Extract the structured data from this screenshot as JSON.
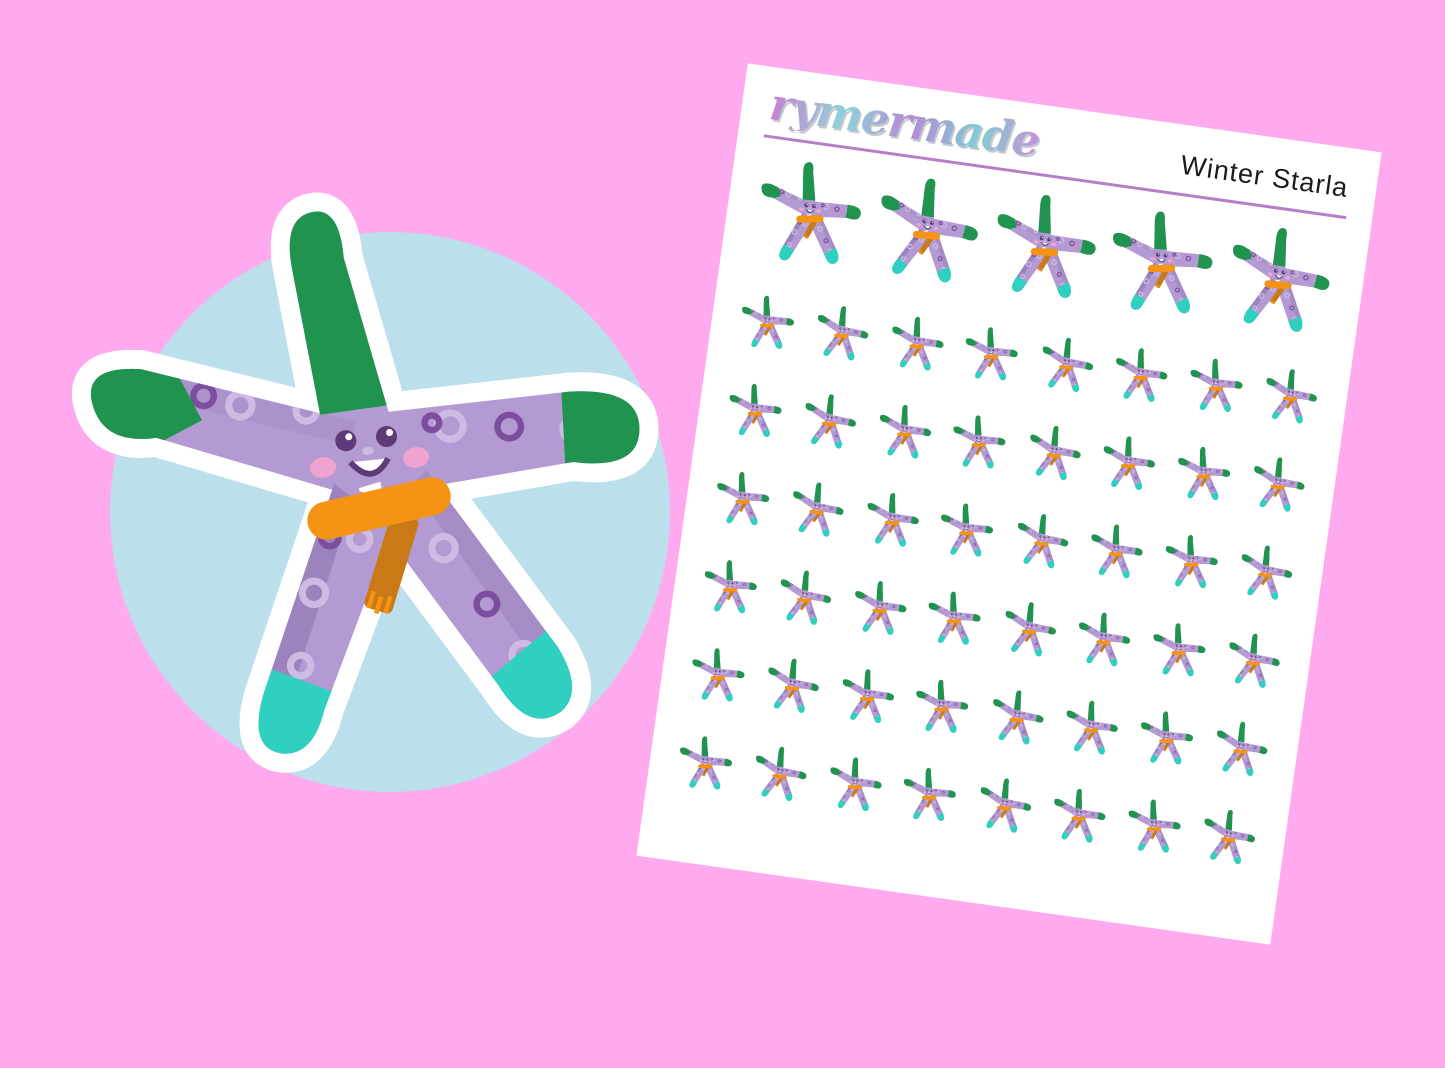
{
  "scene": {
    "background": "product mockup of a winter starfish sticker sheet"
  },
  "colors": {
    "bg": "#ffaaee",
    "circle": "#bcdfec",
    "sheet": "#ffffff",
    "divider": "#b57fc8",
    "title": "#1c1c1c",
    "body": "#b49ad2",
    "body_shade": "#9d83bd",
    "pattern_light": "#cdbbe3",
    "pattern_dark": "#7b4f9e",
    "green": "#20944f",
    "teal": "#2fd0c0",
    "scarf": "#f49314",
    "scarf_tail": "#c97a16",
    "face": "#5d3a78",
    "cheek": "#efa3d0",
    "halo": "#ffffff"
  },
  "sheet": {
    "brand": "rymermade",
    "title": "Winter Starla",
    "rows": [
      {
        "size": "large",
        "count": 5
      },
      {
        "size": "small",
        "count": 8
      },
      {
        "size": "small",
        "count": 8
      },
      {
        "size": "small",
        "count": 8
      },
      {
        "size": "small",
        "count": 8
      },
      {
        "size": "small",
        "count": 8
      },
      {
        "size": "small",
        "count": 8
      }
    ]
  }
}
